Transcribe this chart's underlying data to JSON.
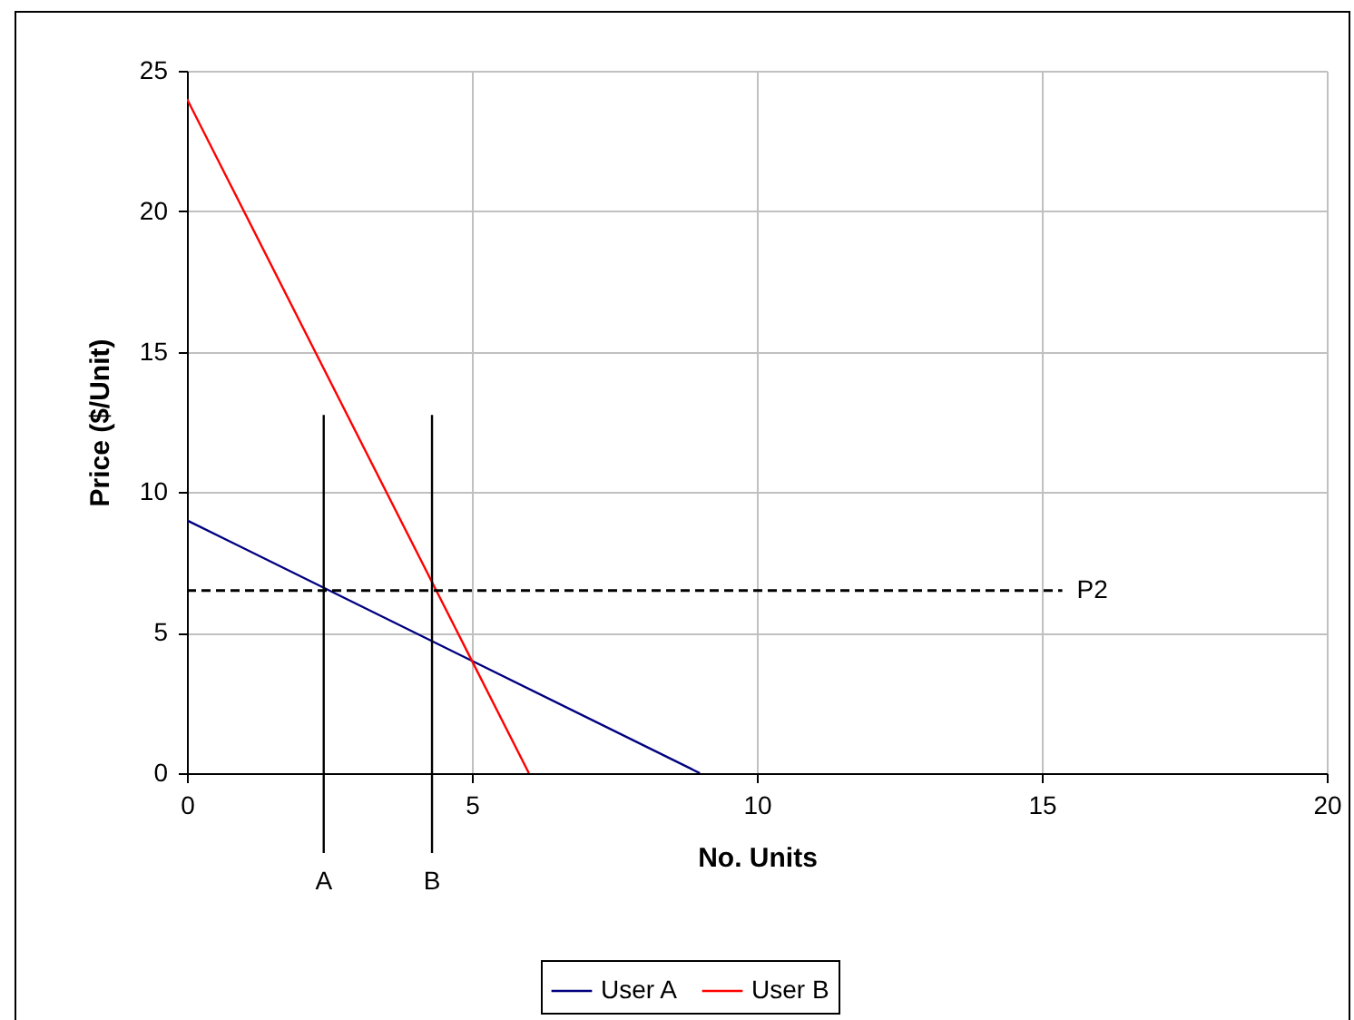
{
  "chart_data": {
    "type": "line",
    "xlabel": "No. Units",
    "ylabel": "Price ($/Unit)",
    "xlim": [
      0,
      20
    ],
    "ylim": [
      0,
      25
    ],
    "xticks": [
      0,
      5,
      10,
      15,
      20
    ],
    "yticks": [
      0,
      5,
      10,
      15,
      20,
      25
    ],
    "grid": true,
    "legend": "bottom",
    "marker": "none",
    "line_style": "solid",
    "series": [
      {
        "name": "User A",
        "color": "#000080",
        "x": [
          0,
          9
        ],
        "values": [
          9,
          0
        ]
      },
      {
        "name": "User B",
        "color": "#ff0000",
        "x": [
          0,
          6
        ],
        "values": [
          24,
          0
        ]
      }
    ],
    "ref_lines": [
      {
        "axis": "x",
        "value": 2.4,
        "label": "A",
        "color": "#000000",
        "line_style": "solid"
      },
      {
        "axis": "x",
        "value": 4.3,
        "label": "B",
        "color": "#000000",
        "line_style": "solid"
      },
      {
        "axis": "y",
        "value": 6.5,
        "label": "P2",
        "color": "#000000",
        "line_style": "dashed"
      }
    ]
  }
}
